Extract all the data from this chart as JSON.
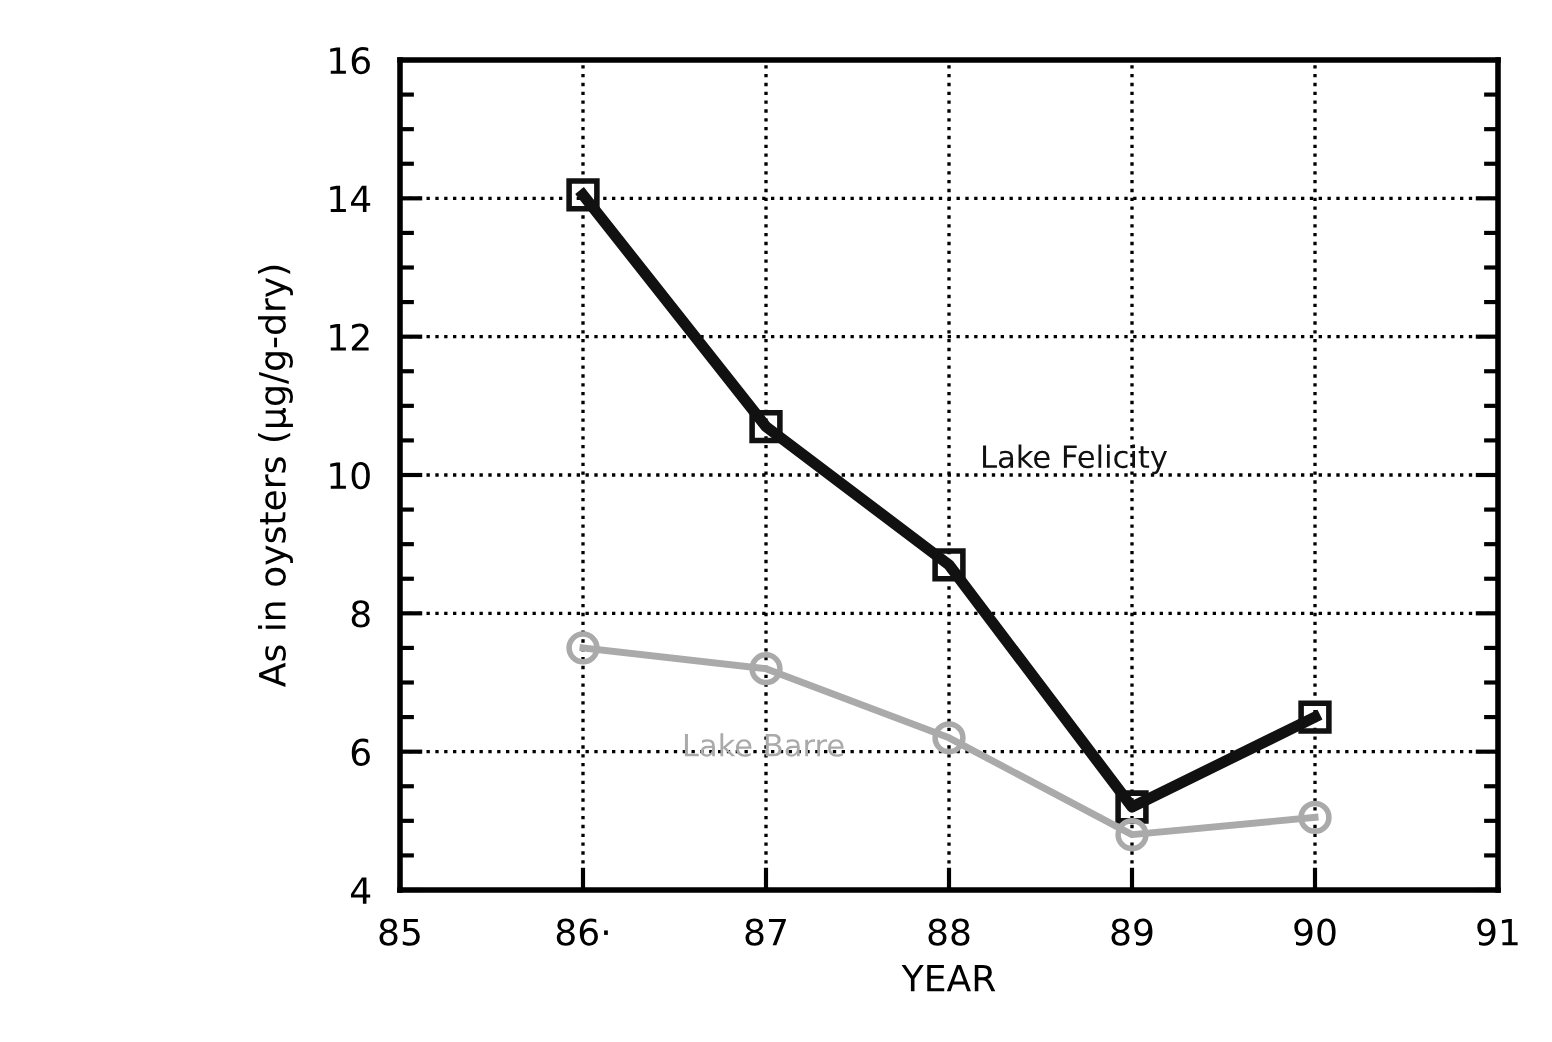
{
  "chart_data": {
    "type": "line",
    "xlabel": "YEAR",
    "ylabel": "As in oysters (µg/g-dry)",
    "x": [
      86,
      87,
      88,
      89,
      90
    ],
    "series": [
      {
        "name": "Lake Felicity",
        "color": "#111111",
        "values": [
          14.05,
          10.7,
          8.7,
          5.2,
          6.5
        ],
        "marker": "square"
      },
      {
        "name": "Lake Barre",
        "color": "#aaaaaa",
        "values": [
          7.5,
          7.2,
          6.2,
          4.8,
          5.05
        ],
        "marker": "circle"
      }
    ],
    "xlim": [
      85,
      91
    ],
    "xticks": [
      85,
      {
        "value": 86,
        "label": "86·"
      },
      87,
      88,
      89,
      90,
      91
    ],
    "ylim": [
      4,
      16
    ],
    "yticks": [
      4,
      6,
      8,
      10,
      12,
      14,
      16
    ],
    "grid": true,
    "line_style": "solid"
  }
}
